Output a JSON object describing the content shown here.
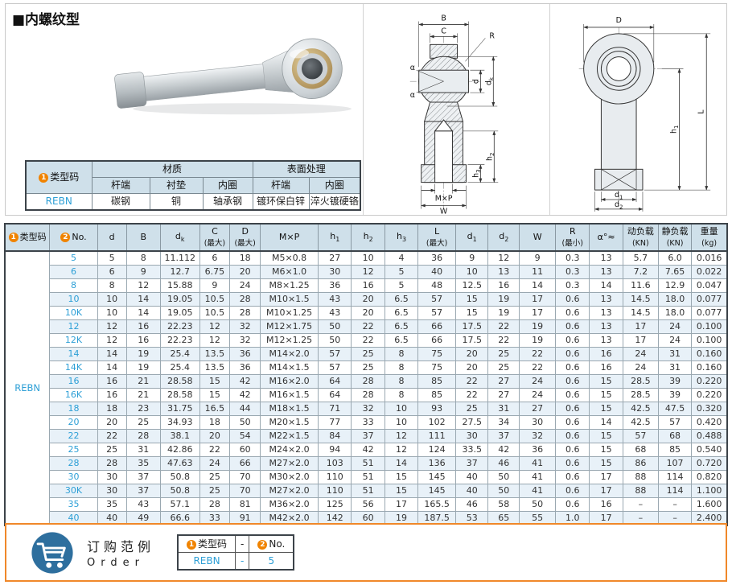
{
  "title": "■内螺纹型",
  "spec_table": {
    "type_code_circ": "1",
    "type_code_label": "类型码",
    "group_material": "材质",
    "group_surface": "表面处理",
    "sub_rod_end": "杆端",
    "sub_liner": "衬垫",
    "sub_inner_ring": "内圈",
    "sub_rod_end2": "杆端",
    "sub_inner_ring2": "内圈",
    "row": {
      "type_code": "REBN",
      "rod_end": "碳钢",
      "liner": "铜",
      "inner_ring": "轴承钢",
      "surface_rod_end": "镀环保白锌",
      "surface_inner_ring": "淬火镀硬铬"
    }
  },
  "diagrams": {
    "side_view": {
      "labels": {
        "B": "B",
        "C": "C",
        "R": "R",
        "alpha": "α",
        "d": "d",
        "dk_base": "d",
        "dk_sub": "k",
        "h2_base": "h",
        "h2_sub": "2",
        "h3_base": "h",
        "h3_sub": "3",
        "mxp": "M×P",
        "w": "W"
      }
    },
    "front_view": {
      "labels": {
        "D": "D",
        "L": "L",
        "h1_base": "h",
        "h1_sub": "1",
        "d1_base": "d",
        "d1_sub": "1",
        "d2_base": "d",
        "d2_sub": "2"
      }
    }
  },
  "main_table": {
    "type_code": "REBN",
    "headers": [
      {
        "t": "类型码",
        "c": "1"
      },
      {
        "t": "No.",
        "c": "2"
      },
      {
        "t": "d"
      },
      {
        "t": "B"
      },
      {
        "t": "d",
        "sb": "k"
      },
      {
        "t": "C",
        "l2": "(最大)"
      },
      {
        "t": "D",
        "l2": "(最大)"
      },
      {
        "t": "M×P"
      },
      {
        "t": "h",
        "sb": "1"
      },
      {
        "t": "h",
        "sb": "2"
      },
      {
        "t": "h",
        "sb": "3"
      },
      {
        "t": "L",
        "l2": "(最大)"
      },
      {
        "t": "d",
        "sb": "1"
      },
      {
        "t": "d",
        "sb": "2"
      },
      {
        "t": "W"
      },
      {
        "t": "R",
        "l2": "(最小)"
      },
      {
        "t": "α°≈"
      },
      {
        "t": "动负载",
        "l2": "(KN)"
      },
      {
        "t": "静负载",
        "l2": "(KN)"
      },
      {
        "t": "重量",
        "l2": "(kg)"
      }
    ],
    "rows": [
      {
        "no": "5",
        "values": [
          "5",
          "8",
          "11.112",
          "6",
          "18",
          "M5×0.8",
          "27",
          "10",
          "4",
          "36",
          "9",
          "12",
          "9",
          "0.3",
          "13",
          "5.7",
          "6.0",
          "0.016"
        ]
      },
      {
        "no": "6",
        "values": [
          "6",
          "9",
          "12.7",
          "6.75",
          "20",
          "M6×1.0",
          "30",
          "12",
          "5",
          "40",
          "10",
          "13",
          "11",
          "0.3",
          "13",
          "7.2",
          "7.65",
          "0.022"
        ]
      },
      {
        "no": "8",
        "values": [
          "8",
          "12",
          "15.88",
          "9",
          "24",
          "M8×1.25",
          "36",
          "16",
          "5",
          "48",
          "12.5",
          "16",
          "14",
          "0.3",
          "14",
          "11.6",
          "12.9",
          "0.047"
        ]
      },
      {
        "no": "10",
        "values": [
          "10",
          "14",
          "19.05",
          "10.5",
          "28",
          "M10×1.5",
          "43",
          "20",
          "6.5",
          "57",
          "15",
          "19",
          "17",
          "0.6",
          "13",
          "14.5",
          "18.0",
          "0.077"
        ]
      },
      {
        "no": "10K",
        "values": [
          "10",
          "14",
          "19.05",
          "10.5",
          "28",
          "M10×1.25",
          "43",
          "20",
          "6.5",
          "57",
          "15",
          "19",
          "17",
          "0.6",
          "13",
          "14.5",
          "18.0",
          "0.077"
        ]
      },
      {
        "no": "12",
        "values": [
          "12",
          "16",
          "22.23",
          "12",
          "32",
          "M12×1.75",
          "50",
          "22",
          "6.5",
          "66",
          "17.5",
          "22",
          "19",
          "0.6",
          "13",
          "17",
          "24",
          "0.100"
        ]
      },
      {
        "no": "12K",
        "values": [
          "12",
          "16",
          "22.23",
          "12",
          "32",
          "M12×1.25",
          "50",
          "22",
          "6.5",
          "66",
          "17.5",
          "22",
          "19",
          "0.6",
          "13",
          "17",
          "24",
          "0.100"
        ]
      },
      {
        "no": "14",
        "values": [
          "14",
          "19",
          "25.4",
          "13.5",
          "36",
          "M14×2.0",
          "57",
          "25",
          "8",
          "75",
          "20",
          "25",
          "22",
          "0.6",
          "16",
          "24",
          "31",
          "0.160"
        ]
      },
      {
        "no": "14K",
        "values": [
          "14",
          "19",
          "25.4",
          "13.5",
          "36",
          "M14×1.5",
          "57",
          "25",
          "8",
          "75",
          "20",
          "25",
          "22",
          "0.6",
          "16",
          "24",
          "31",
          "0.160"
        ]
      },
      {
        "no": "16",
        "values": [
          "16",
          "21",
          "28.58",
          "15",
          "42",
          "M16×2.0",
          "64",
          "28",
          "8",
          "85",
          "22",
          "27",
          "24",
          "0.6",
          "15",
          "28.5",
          "39",
          "0.220"
        ]
      },
      {
        "no": "16K",
        "values": [
          "16",
          "21",
          "28.58",
          "15",
          "42",
          "M16×1.5",
          "64",
          "28",
          "8",
          "85",
          "22",
          "27",
          "24",
          "0.6",
          "15",
          "28.5",
          "39",
          "0.220"
        ]
      },
      {
        "no": "18",
        "values": [
          "18",
          "23",
          "31.75",
          "16.5",
          "44",
          "M18×1.5",
          "71",
          "32",
          "10",
          "93",
          "25",
          "31",
          "27",
          "0.6",
          "15",
          "42.5",
          "47.5",
          "0.320"
        ]
      },
      {
        "no": "20",
        "values": [
          "20",
          "25",
          "34.93",
          "18",
          "50",
          "M20×1.5",
          "77",
          "33",
          "10",
          "102",
          "27.5",
          "34",
          "30",
          "0.6",
          "14",
          "42.5",
          "57",
          "0.420"
        ]
      },
      {
        "no": "22",
        "values": [
          "22",
          "28",
          "38.1",
          "20",
          "54",
          "M22×1.5",
          "84",
          "37",
          "12",
          "111",
          "30",
          "37",
          "32",
          "0.6",
          "15",
          "57",
          "68",
          "0.488"
        ]
      },
      {
        "no": "25",
        "values": [
          "25",
          "31",
          "42.86",
          "22",
          "60",
          "M24×2.0",
          "94",
          "42",
          "12",
          "124",
          "33.5",
          "42",
          "36",
          "0.6",
          "15",
          "68",
          "85",
          "0.540"
        ]
      },
      {
        "no": "28",
        "values": [
          "28",
          "35",
          "47.63",
          "24",
          "66",
          "M27×2.0",
          "103",
          "51",
          "14",
          "136",
          "37",
          "46",
          "41",
          "0.6",
          "15",
          "86",
          "107",
          "0.720"
        ]
      },
      {
        "no": "30",
        "values": [
          "30",
          "37",
          "50.8",
          "25",
          "70",
          "M30×2.0",
          "110",
          "51",
          "15",
          "145",
          "40",
          "50",
          "41",
          "0.6",
          "17",
          "88",
          "114",
          "0.820"
        ]
      },
      {
        "no": "30K",
        "values": [
          "30",
          "37",
          "50.8",
          "25",
          "70",
          "M27×2.0",
          "110",
          "51",
          "15",
          "145",
          "40",
          "50",
          "41",
          "0.6",
          "17",
          "88",
          "114",
          "1.100"
        ]
      },
      {
        "no": "35",
        "values": [
          "35",
          "43",
          "57.1",
          "28",
          "81",
          "M36×2.0",
          "125",
          "56",
          "17",
          "165.5",
          "46",
          "58",
          "50",
          "0.6",
          "16",
          "–",
          "–",
          "1.600"
        ]
      },
      {
        "no": "40",
        "values": [
          "40",
          "49",
          "66.6",
          "33",
          "91",
          "M42×2.0",
          "142",
          "60",
          "19",
          "187.5",
          "53",
          "65",
          "55",
          "1.0",
          "17",
          "–",
          "–",
          "2.400"
        ]
      }
    ]
  },
  "footer": {
    "label_cn": "订购范例",
    "label_en": "Order",
    "table": {
      "col1_circ": "1",
      "col1_label": "类型码",
      "col2_label": "-",
      "col3_circ": "2",
      "col3_label": "No.",
      "val1": "REBN",
      "val2": "-",
      "val3": "5"
    }
  },
  "colors": {
    "accent_orange": "#f08300",
    "link_blue": "#2d9fd6",
    "header_bg": "#cfe0ea",
    "alt_row_bg": "#e8f1f8",
    "footer_border": "#f0882a",
    "cart_blue": "#2e6f9e"
  }
}
